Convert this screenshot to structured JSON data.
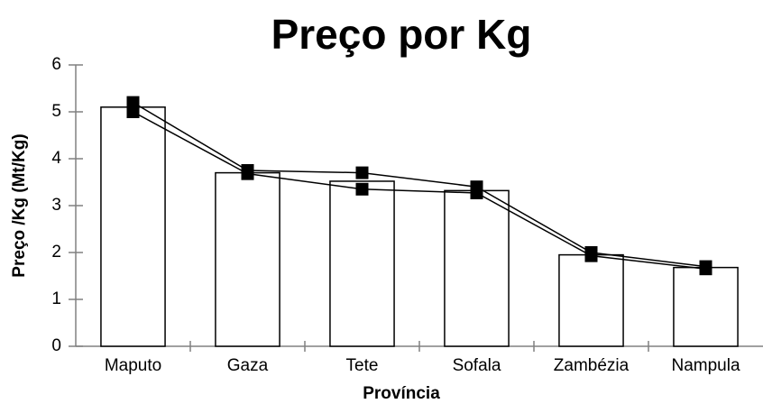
{
  "chart_data": {
    "type": "bar",
    "title": "Preço por Kg",
    "x_label": "Província",
    "y_label": "Preço /Kg (Mt/Kg)",
    "categories": [
      "Maputo",
      "Gaza",
      "Tete",
      "Sofala",
      "Zambézia",
      "Nampula"
    ],
    "values": [
      5.1,
      3.7,
      3.52,
      3.32,
      1.95,
      1.68
    ],
    "color": "#ffffff",
    "series": [
      {
        "type": "line",
        "color": "#000000",
        "values": [
          5.2,
          3.75,
          3.7,
          3.4,
          2.0,
          1.7
        ]
      },
      {
        "type": "line",
        "color": "#000000",
        "values": [
          5.0,
          3.68,
          3.35,
          3.27,
          1.93,
          1.65
        ]
      }
    ],
    "ylim": [
      0,
      6
    ],
    "yticks": [
      0,
      1,
      2,
      3,
      4,
      5,
      6
    ],
    "grid": false
  }
}
